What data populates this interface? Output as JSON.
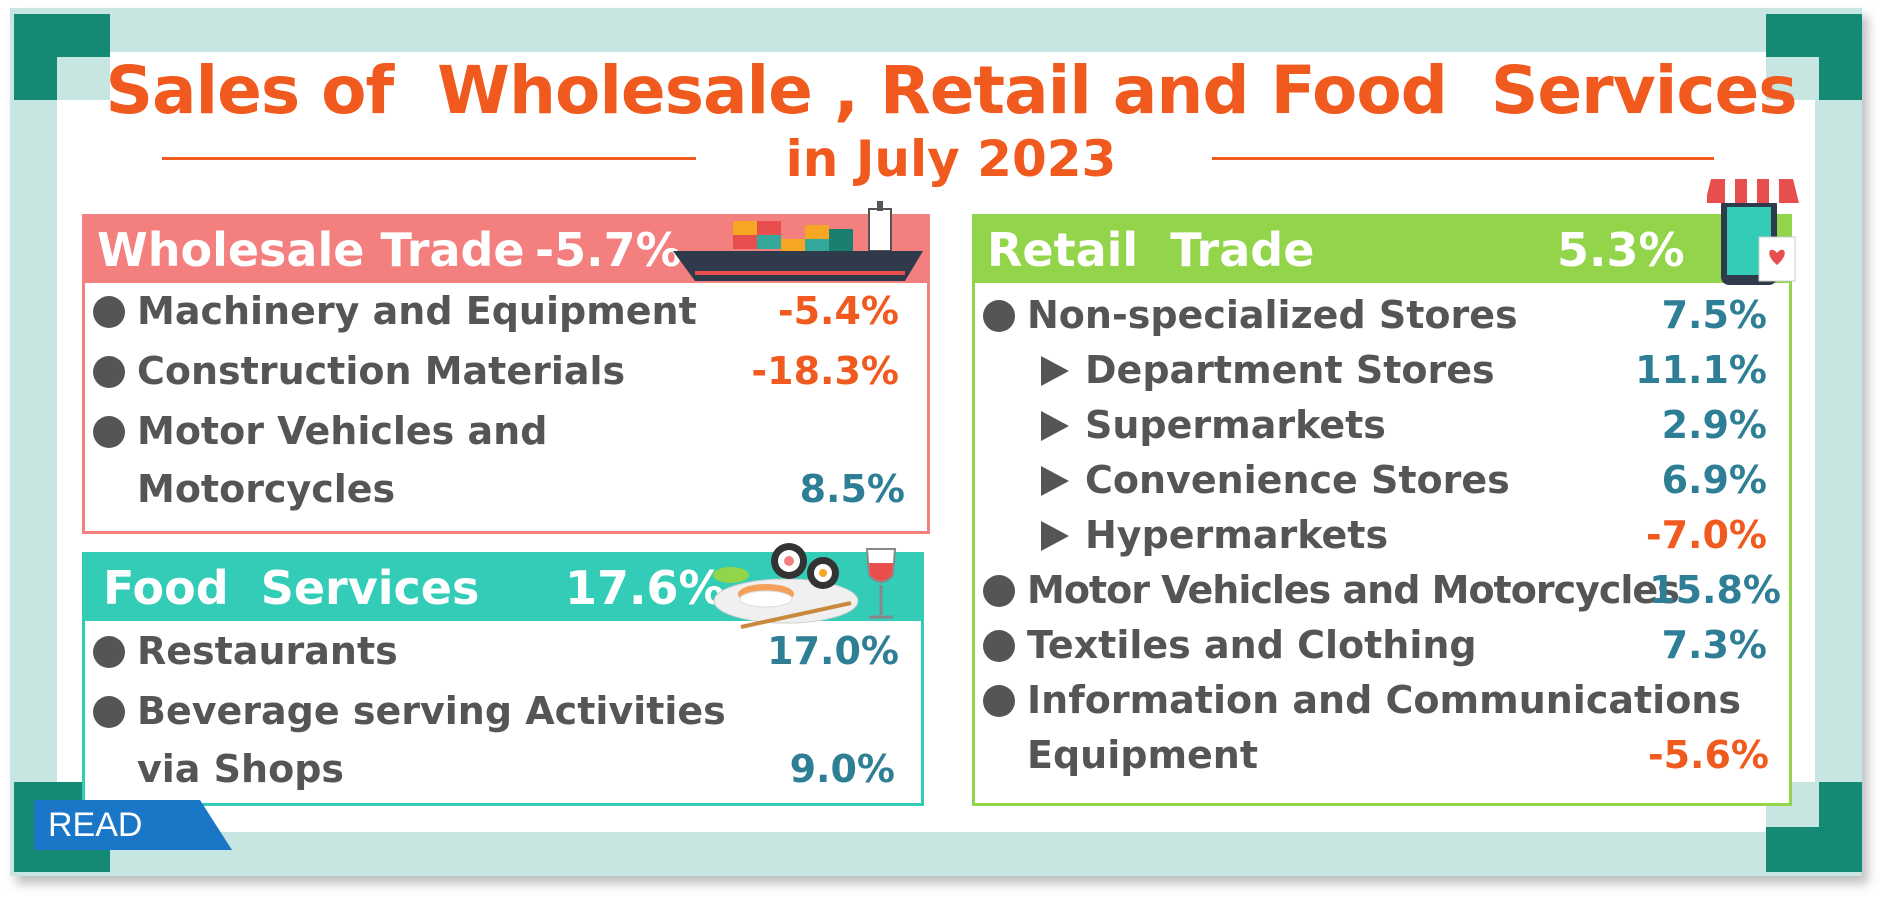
{
  "title": {
    "line1": "Sales of  Wholesale , Retail and Food  Services",
    "line2": "in July 2023"
  },
  "colors": {
    "accent": "#f05a1e",
    "positive": "#2e7f95",
    "negative": "#f05a1e",
    "wholesale": "#f47f7f",
    "food": "#33cdb7",
    "retail": "#93d54a",
    "frame": "#c7e6e1",
    "corner": "#148a75",
    "read_button": "#1a76c7"
  },
  "wholesale": {
    "title": "Wholesale Trade",
    "value": "-5.7%",
    "items": [
      {
        "label": "Machinery and Equipment",
        "value": "-5.4%"
      },
      {
        "label": "Construction Materials",
        "value": "-18.3%"
      },
      {
        "label": "Motor Vehicles and",
        "label2": "Motorcycles",
        "value": "8.5%"
      }
    ]
  },
  "food": {
    "title": "Food  Services",
    "value": "17.6%",
    "items": [
      {
        "label": "Restaurants",
        "value": "17.0%"
      },
      {
        "label": "Beverage serving Activities",
        "label2": "via Shops",
        "value": "9.0%"
      }
    ]
  },
  "retail": {
    "title": "Retail  Trade",
    "value": "5.3%",
    "items": [
      {
        "label": "Non-specialized Stores",
        "value": "7.5%"
      },
      {
        "label": "Department Stores",
        "value": "11.1%"
      },
      {
        "label": "Supermarkets",
        "value": "2.9%"
      },
      {
        "label": "Convenience Stores",
        "value": "6.9%"
      },
      {
        "label": "Hypermarkets",
        "value": "-7.0%"
      },
      {
        "label": "Motor Vehicles and Motorcycles",
        "value": "15.8%"
      },
      {
        "label": "Textiles and Clothing",
        "value": "7.3%"
      },
      {
        "label": "Information and Communications",
        "label2": "Equipment",
        "value": "-5.6%"
      }
    ]
  },
  "read_label": "READ",
  "icons": [
    "cargo-ship-icon",
    "sushi-plate-icon",
    "wine-glass-icon",
    "shop-phone-icon"
  ]
}
